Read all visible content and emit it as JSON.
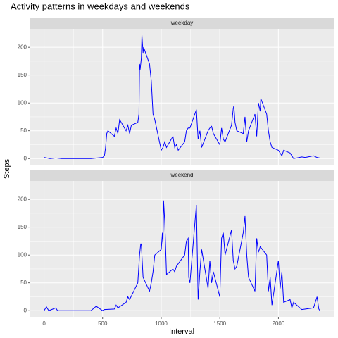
{
  "title": "Activity patterns in weekdays and weekends",
  "xlabel": "Interval",
  "ylabel": "Steps",
  "chart_data": [
    {
      "type": "line",
      "panel_label": "weekday",
      "color": "#0000ff",
      "grid": true,
      "minor_grid": true,
      "xlim": [
        -117.75,
        2472.75
      ],
      "ylim": [
        -11.1,
        233.1
      ],
      "xticks": [
        0,
        500,
        1000,
        1500,
        2000
      ],
      "yticks": [
        0,
        50,
        100,
        150,
        200
      ],
      "x": [
        0,
        50,
        100,
        150,
        200,
        300,
        400,
        500,
        515,
        525,
        535,
        545,
        600,
        615,
        630,
        645,
        700,
        715,
        730,
        745,
        800,
        810,
        815,
        820,
        830,
        835,
        845,
        850,
        900,
        915,
        930,
        945,
        1000,
        1015,
        1030,
        1045,
        1100,
        1115,
        1130,
        1145,
        1200,
        1215,
        1230,
        1245,
        1300,
        1315,
        1330,
        1345,
        1400,
        1415,
        1430,
        1445,
        1500,
        1515,
        1530,
        1545,
        1600,
        1615,
        1620,
        1630,
        1645,
        1700,
        1715,
        1730,
        1745,
        1800,
        1815,
        1830,
        1845,
        1850,
        1900,
        1915,
        1930,
        1945,
        2000,
        2015,
        2030,
        2045,
        2100,
        2115,
        2130,
        2200,
        2230,
        2300,
        2330,
        2355
      ],
      "values": [
        2,
        0,
        1,
        0,
        0,
        0,
        0,
        2,
        5,
        20,
        45,
        50,
        40,
        55,
        45,
        70,
        50,
        60,
        45,
        60,
        65,
        80,
        170,
        160,
        180,
        222,
        190,
        200,
        170,
        140,
        80,
        70,
        15,
        20,
        30,
        20,
        40,
        20,
        25,
        15,
        30,
        50,
        55,
        55,
        88,
        35,
        50,
        20,
        50,
        55,
        58,
        45,
        25,
        55,
        35,
        30,
        60,
        90,
        95,
        65,
        50,
        45,
        75,
        30,
        50,
        80,
        40,
        100,
        85,
        108,
        80,
        50,
        30,
        20,
        15,
        10,
        5,
        15,
        10,
        5,
        0,
        3,
        2,
        5,
        2,
        1
      ]
    },
    {
      "type": "line",
      "panel_label": "weekend",
      "color": "#0000ff",
      "grid": true,
      "minor_grid": true,
      "xlim": [
        -117.75,
        2472.75
      ],
      "ylim": [
        -11.1,
        233.1
      ],
      "xticks": [
        0,
        500,
        1000,
        1500,
        2000
      ],
      "yticks": [
        0,
        50,
        100,
        150,
        200
      ],
      "x": [
        0,
        20,
        40,
        100,
        115,
        200,
        400,
        445,
        500,
        515,
        600,
        615,
        630,
        700,
        715,
        730,
        800,
        815,
        825,
        830,
        845,
        900,
        915,
        930,
        945,
        1000,
        1010,
        1015,
        1020,
        1030,
        1035,
        1045,
        1100,
        1115,
        1130,
        1200,
        1215,
        1230,
        1235,
        1245,
        1300,
        1315,
        1330,
        1345,
        1400,
        1415,
        1430,
        1445,
        1500,
        1515,
        1530,
        1545,
        1600,
        1615,
        1630,
        1645,
        1700,
        1715,
        1730,
        1745,
        1800,
        1815,
        1830,
        1845,
        1900,
        1915,
        1930,
        1945,
        2000,
        2015,
        2030,
        2045,
        2100,
        2115,
        2130,
        2200,
        2300,
        2330,
        2345,
        2355
      ],
      "values": [
        0,
        7,
        0,
        5,
        0,
        0,
        0,
        8,
        0,
        2,
        3,
        10,
        5,
        15,
        25,
        20,
        50,
        100,
        120,
        120,
        60,
        35,
        50,
        70,
        100,
        110,
        140,
        120,
        198,
        160,
        130,
        65,
        75,
        70,
        80,
        100,
        125,
        130,
        60,
        50,
        190,
        20,
        70,
        110,
        40,
        90,
        50,
        70,
        25,
        130,
        140,
        100,
        145,
        90,
        75,
        80,
        140,
        170,
        100,
        60,
        35,
        130,
        105,
        115,
        100,
        35,
        60,
        10,
        90,
        40,
        70,
        15,
        20,
        5,
        15,
        2,
        5,
        25,
        3,
        0
      ]
    }
  ]
}
